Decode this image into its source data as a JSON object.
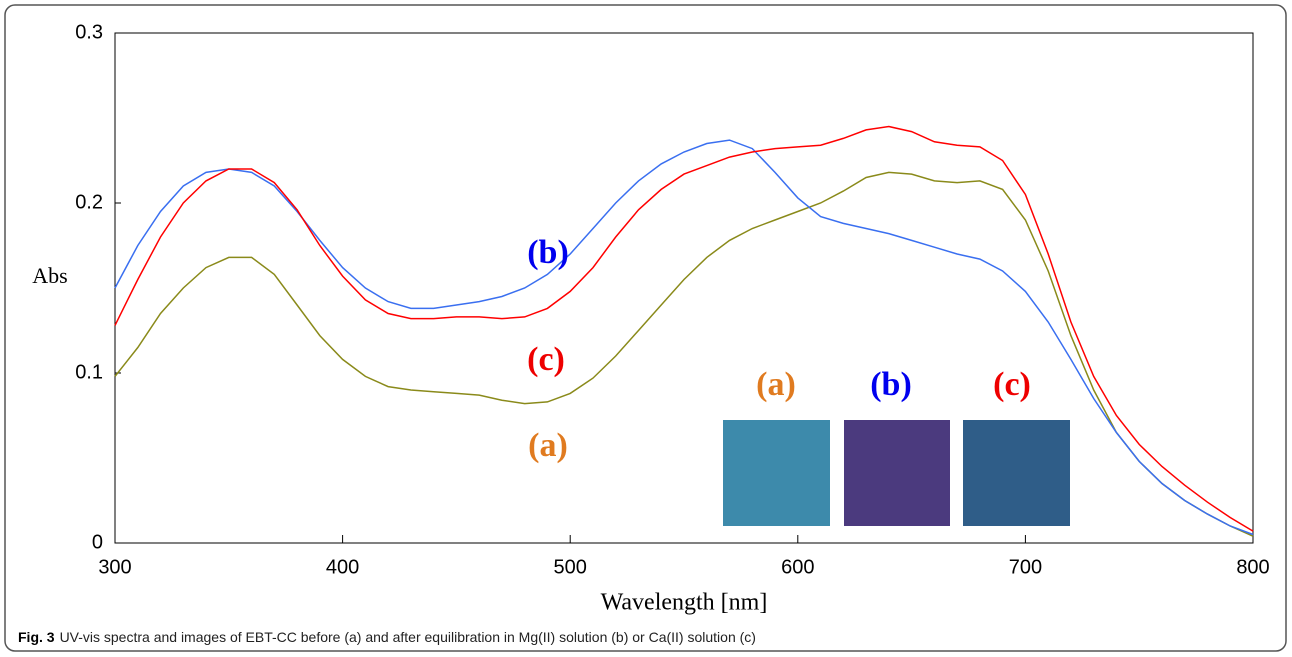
{
  "chart_data": {
    "type": "line",
    "y_label": "Abs",
    "x_label": "Wavelength [nm]",
    "caption": {
      "label": "Fig. 3",
      "text": "UV-vis spectra and images of EBT-CC before (a) and after equilibration in Mg(II) solution (b) or Ca(II) solution (c)"
    },
    "x": [
      300,
      310,
      320,
      330,
      340,
      350,
      360,
      370,
      380,
      390,
      400,
      410,
      420,
      430,
      440,
      450,
      460,
      470,
      480,
      490,
      500,
      510,
      520,
      530,
      540,
      550,
      560,
      570,
      580,
      590,
      600,
      610,
      620,
      630,
      640,
      650,
      660,
      670,
      680,
      690,
      700,
      710,
      720,
      730,
      740,
      750,
      760,
      770,
      780,
      790,
      800
    ],
    "xlim": [
      300,
      800
    ],
    "xticks": [
      300,
      400,
      500,
      600,
      700,
      800
    ],
    "ylim": [
      0,
      0.3
    ],
    "yticks": [
      0,
      0.1,
      0.2,
      0.3
    ],
    "series": [
      {
        "name": "(a)",
        "color": "#8a8a1a",
        "values": [
          0.098,
          0.115,
          0.135,
          0.15,
          0.162,
          0.168,
          0.168,
          0.158,
          0.14,
          0.122,
          0.108,
          0.098,
          0.092,
          0.09,
          0.089,
          0.088,
          0.087,
          0.084,
          0.082,
          0.083,
          0.088,
          0.097,
          0.11,
          0.125,
          0.14,
          0.155,
          0.168,
          0.178,
          0.185,
          0.19,
          0.195,
          0.2,
          0.207,
          0.215,
          0.218,
          0.217,
          0.213,
          0.212,
          0.213,
          0.208,
          0.19,
          0.16,
          0.122,
          0.09,
          0.065,
          0.048,
          0.035,
          0.025,
          0.017,
          0.01,
          0.004
        ]
      },
      {
        "name": "(b)",
        "color": "#3a6ff0",
        "values": [
          0.15,
          0.175,
          0.195,
          0.21,
          0.218,
          0.22,
          0.218,
          0.21,
          0.195,
          0.178,
          0.162,
          0.15,
          0.142,
          0.138,
          0.138,
          0.14,
          0.142,
          0.145,
          0.15,
          0.158,
          0.17,
          0.185,
          0.2,
          0.213,
          0.223,
          0.23,
          0.235,
          0.237,
          0.232,
          0.218,
          0.203,
          0.192,
          0.188,
          0.185,
          0.182,
          0.178,
          0.174,
          0.17,
          0.167,
          0.16,
          0.148,
          0.13,
          0.108,
          0.085,
          0.065,
          0.048,
          0.035,
          0.025,
          0.017,
          0.01,
          0.005
        ]
      },
      {
        "name": "(c)",
        "color": "#ff0000",
        "values": [
          0.128,
          0.155,
          0.18,
          0.2,
          0.213,
          0.22,
          0.22,
          0.212,
          0.196,
          0.175,
          0.157,
          0.143,
          0.135,
          0.132,
          0.132,
          0.133,
          0.133,
          0.132,
          0.133,
          0.138,
          0.148,
          0.162,
          0.18,
          0.196,
          0.208,
          0.217,
          0.222,
          0.227,
          0.23,
          0.232,
          0.233,
          0.234,
          0.238,
          0.243,
          0.245,
          0.242,
          0.236,
          0.234,
          0.233,
          0.225,
          0.205,
          0.17,
          0.13,
          0.098,
          0.075,
          0.058,
          0.045,
          0.034,
          0.024,
          0.015,
          0.007
        ]
      }
    ],
    "annotations": [
      {
        "text": "(b)",
        "color": "#0000ee"
      },
      {
        "text": "(c)",
        "color": "#ee0000"
      },
      {
        "text": "(a)",
        "color": "#e07b20"
      },
      {
        "text": "(a)",
        "color": "#e07b20"
      },
      {
        "text": "(b)",
        "color": "#0000ee"
      },
      {
        "text": "(c)",
        "color": "#ee0000"
      }
    ]
  }
}
